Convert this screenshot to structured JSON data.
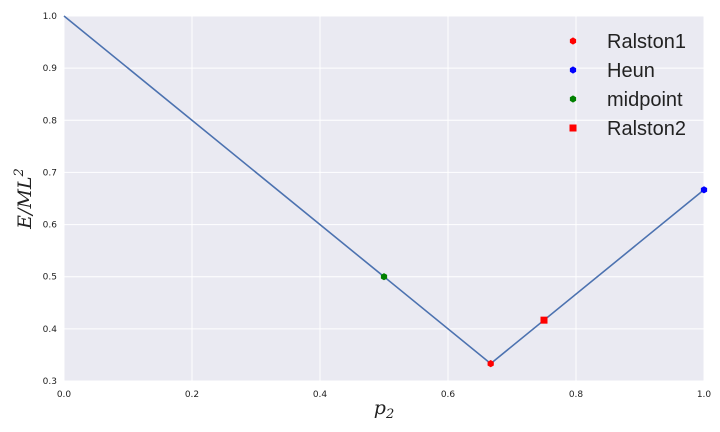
{
  "chart_data": {
    "type": "line",
    "title": "",
    "xlabel": "p",
    "xlabel_sub": "2",
    "ylabel": "E/ML",
    "ylabel_sup": "2",
    "xlim": [
      0.0,
      1.0
    ],
    "ylim": [
      0.3,
      1.0
    ],
    "xticks": [
      "0.0",
      "0.2",
      "0.4",
      "0.6",
      "0.8",
      "1.0"
    ],
    "yticks": [
      "0.3",
      "0.4",
      "0.5",
      "0.6",
      "0.7",
      "0.8",
      "0.9",
      "1.0"
    ],
    "grid": true,
    "legend_position": "top-right",
    "series": [
      {
        "x": [
          0.0,
          0.6667,
          1.0
        ],
        "y": [
          1.0,
          0.3333,
          0.6667
        ],
        "color": "#4C72B0"
      }
    ],
    "points": [
      {
        "name": "Ralston1",
        "x": 0.6667,
        "y": 0.3333,
        "color": "#FF0000",
        "marker": "hexagon"
      },
      {
        "name": "Heun",
        "x": 1.0,
        "y": 0.6667,
        "color": "#0000FF",
        "marker": "hexagon"
      },
      {
        "name": "midpoint",
        "x": 0.5,
        "y": 0.5,
        "color": "#008000",
        "marker": "hexagon"
      },
      {
        "name": "Ralston2",
        "x": 0.75,
        "y": 0.4167,
        "color": "#FF0000",
        "marker": "square"
      }
    ],
    "background_color": "#EAEAF2",
    "grid_color": "#FFFFFF"
  }
}
